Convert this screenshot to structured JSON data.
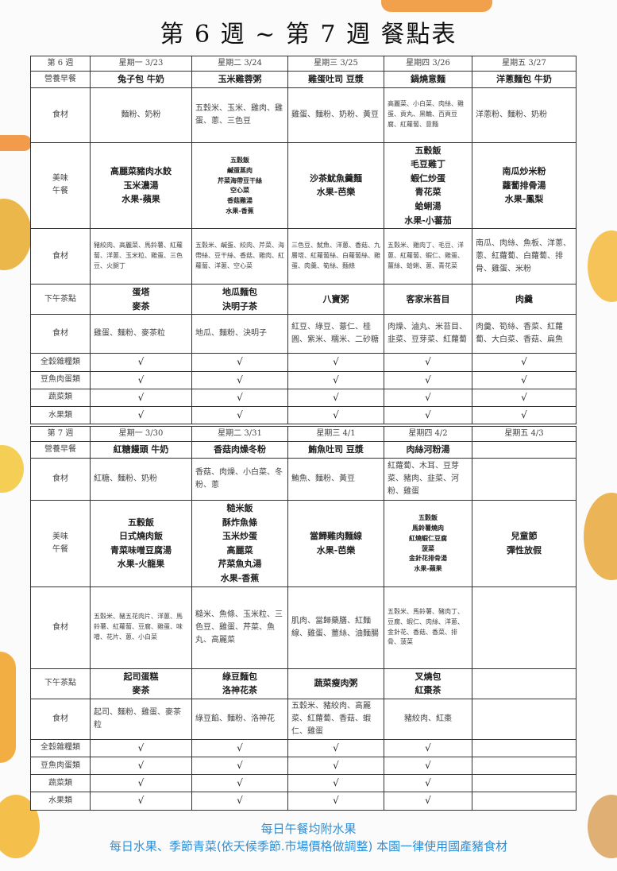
{
  "title": "第 6 週 ~ 第 7 週 餐點表",
  "row_labels": {
    "breakfast": "營養早餐",
    "ingredients": "食材",
    "lunch": "美味\n午餐",
    "snack": "下午茶點",
    "food_groups": [
      "全穀雜糧類",
      "豆魚肉蛋類",
      "蔬菜類",
      "水果類"
    ]
  },
  "check_mark": "√",
  "weeks": [
    {
      "label": "第 6 週",
      "days": [
        "星期一 3/23",
        "星期二 3/24",
        "星期三 3/25",
        "星期四 3/26",
        "星期五 3/27"
      ],
      "breakfast": [
        "兔子包 牛奶",
        "玉米雞蓉粥",
        "雞蛋吐司 豆漿",
        "鍋燒意麵",
        "洋蔥麵包 牛奶"
      ],
      "breakfast_ingredients": [
        "麵粉、奶粉",
        "五穀米、玉米、雞肉、雞蛋、蔥、三色豆",
        "雞蛋、麵粉、奶粉、黃豆",
        "高麗菜、小白菜、肉絲、雞蛋、貢丸、黑輪、百頁豆腐、紅蘿蔔、意麵",
        "洋蔥粉、麵粉、奶粉"
      ],
      "lunch": [
        "高麗菜豬肉水餃\n玉米濃湯\n水果-蘋果",
        "五穀飯\n鹹蛋蒸肉\n芹菜海帶豆干絲\n空心菜\n香菇雞湯\n水果-香蕉",
        "沙茶魷魚羹麵\n水果-芭樂",
        "五穀飯\n毛豆雞丁\n蝦仁炒蛋\n青花菜\n蛤蜊湯\n水果-小蕃茄",
        "南瓜炒米粉\n蘿蔔排骨湯\n水果-鳳梨"
      ],
      "lunch_ingredients": [
        "豬絞肉、高麗菜、馬鈴薯、紅蘿蔔、洋蔥、玉米粒、雞蛋、三色豆、火腿丁",
        "五穀米、鹹蛋、絞肉、芹菜、海帶絲、豆干絲、香菇、雞肉、紅蘿蔔、洋蔥、空心菜",
        "三色豆、魷魚、洋蔥、香菇、九層塔、紅蘿蔔絲、白蘿蔔絲、雞蛋、肉羹、筍絲、麵條",
        "五穀米、雞肉丁、毛豆、洋蔥、紅蘿蔔、蝦仁、雞蛋、薑絲、蛤蜊、蔥、青花菜",
        "南瓜、肉絲、魚板、洋蔥、蔥、紅蘿蔔、白蘿蔔、排骨、雞蛋、米粉"
      ],
      "snack": [
        "蛋塔\n麥茶",
        "地瓜麵包\n決明子茶",
        "八寶粥",
        "客家米苔目",
        "肉羹"
      ],
      "snack_ingredients": [
        "雞蛋、麵粉、麥茶粒",
        "地瓜、麵粉、決明子",
        "紅豆、綠豆、薏仁、桂圓、紫米、糯米、二砂糖",
        "肉燥、滷丸、米苔目、韭菜、豆芽菜、紅蘿蔔",
        "肉羹、筍絲、香菜、紅蘿蔔、大白菜、香菇、扁魚"
      ],
      "food_groups": [
        [
          true,
          true,
          true,
          true,
          true
        ],
        [
          true,
          true,
          true,
          true,
          true
        ],
        [
          true,
          true,
          true,
          true,
          true
        ],
        [
          true,
          true,
          true,
          true,
          true
        ]
      ]
    },
    {
      "label": "第 7 週",
      "days": [
        "星期一 3/30",
        "星期二 3/31",
        "星期三 4/1",
        "星期四 4/2",
        "星期五 4/3"
      ],
      "breakfast": [
        "紅糖饅頭 牛奶",
        "香菇肉燥冬粉",
        "鮪魚吐司 豆漿",
        "肉絲河粉湯",
        ""
      ],
      "breakfast_ingredients": [
        "紅糖、麵粉、奶粉",
        "香菇、肉燥、小白菜、冬粉、蔥",
        "鮪魚、麵粉、黃豆",
        "紅蘿蔔、木耳、豆芽菜、豬肉、韭菜、河粉、雞蛋",
        ""
      ],
      "lunch": [
        "五穀飯\n日式燒肉飯\n青菜味噌豆腐湯\n水果-火龍果",
        "糙米飯\n酥炸魚條\n玉米炒蛋\n高麗菜\n芹菜魚丸湯\n水果-香蕉",
        "當歸雞肉麵線\n水果-芭樂",
        "五穀飯\n馬鈴薯燒肉\n紅燒蝦仁豆腐\n菠菜\n金針花排骨湯\n水果-蘋果",
        "兒童節\n彈性放假"
      ],
      "lunch_ingredients": [
        "五穀米、豬五花肉片、洋蔥、馬鈴薯、紅蘿蔔、豆腐、雞蛋、味噌、花片、蔥、小白菜",
        "糙米、魚條、玉米粒、三色豆、雞蛋、芹菜、魚丸、高麗菜",
        "肌肉、當歸藥膳、紅麵線、雞蛋、薑絲、油麵腸",
        "五穀米、馬鈴薯、豬肉丁、豆腐、蝦仁、肉絲、洋蔥、金針花、香菇、香菜、排骨、菠菜",
        ""
      ],
      "snack": [
        "起司蛋糕\n麥茶",
        "綠豆麵包\n洛神花茶",
        "蔬菜瘦肉粥",
        "叉燒包\n紅棗茶",
        ""
      ],
      "snack_ingredients": [
        "起司、麵粉、雞蛋、麥茶粒",
        "綠豆餡、麵粉、洛神花",
        "五穀米、豬絞肉、高麗菜、紅蘿蔔、香菇、蝦仁、雞蛋",
        "豬絞肉、紅棗",
        ""
      ],
      "food_groups": [
        [
          true,
          true,
          true,
          true,
          false
        ],
        [
          true,
          true,
          true,
          true,
          false
        ],
        [
          true,
          true,
          true,
          true,
          false
        ],
        [
          true,
          true,
          true,
          true,
          false
        ]
      ]
    }
  ],
  "footer": {
    "line1": "每日午餐均附水果",
    "line2": "每日水果、季節青菜(依天候季節.市場價格做調整) 本園一律使用國產豬食材"
  }
}
